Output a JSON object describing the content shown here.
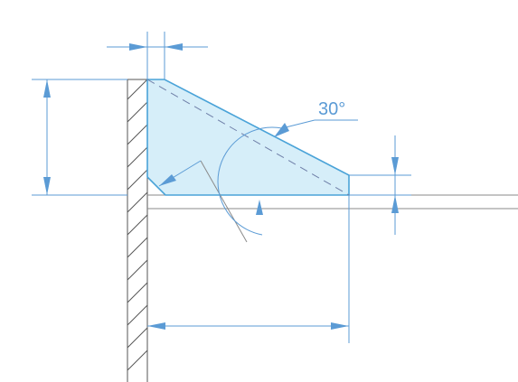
{
  "annotations": {
    "angle_label": "30°"
  },
  "colors": {
    "dimension": "#5b9bd5",
    "weld_fill": "#d6eef9",
    "weld_outline": "#4aa3d8",
    "wall_line": "#555555"
  }
}
